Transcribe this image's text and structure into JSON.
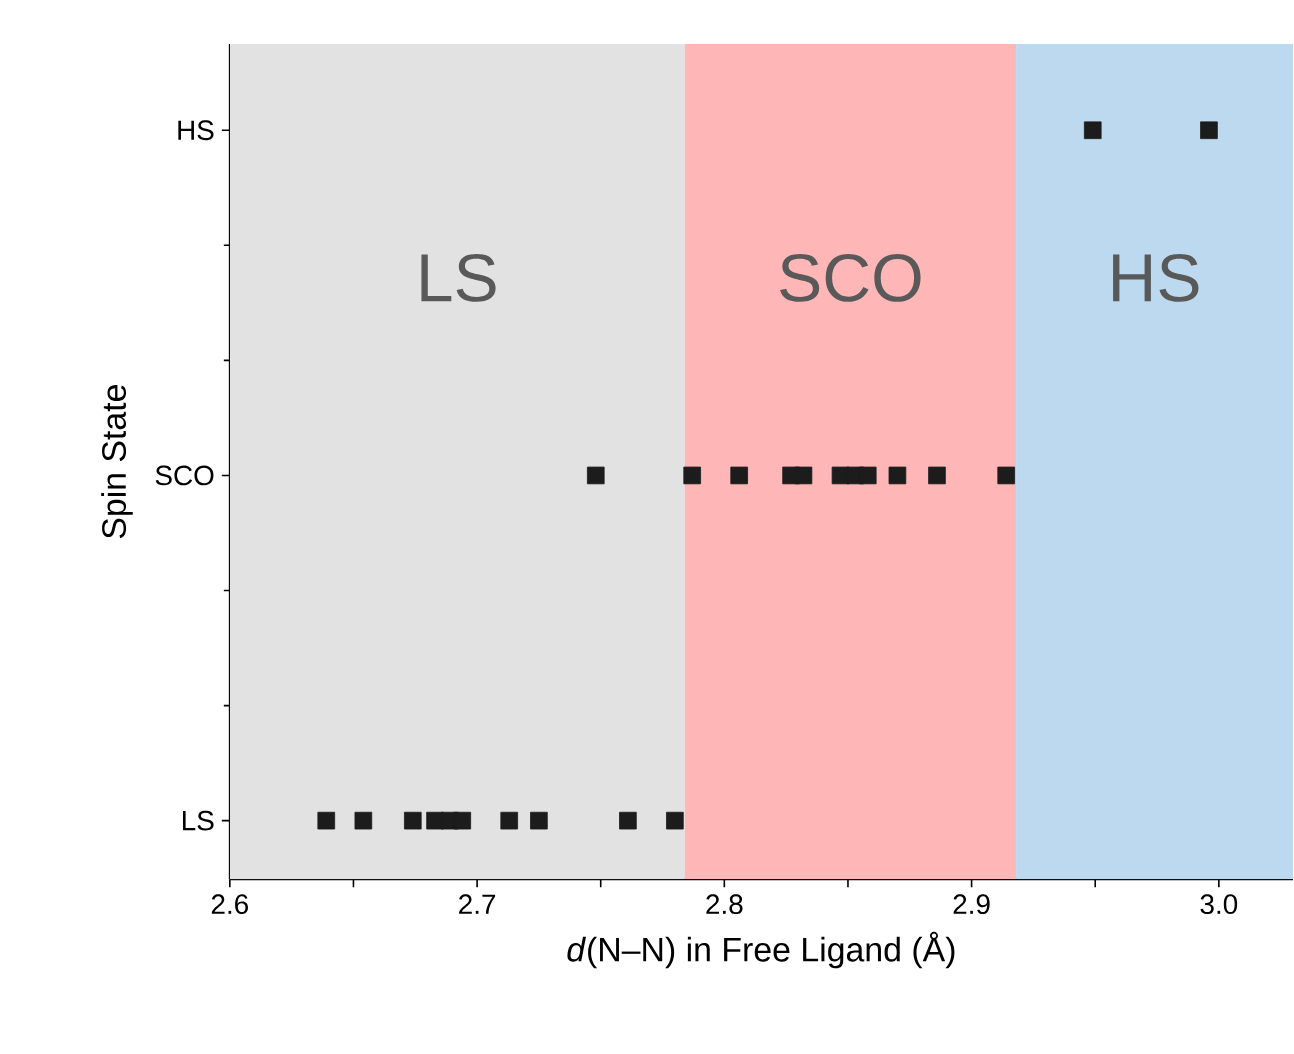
{
  "chart_data": {
    "type": "scatter",
    "orientation": "horizontal",
    "xlabel": "*d*(N–N) in Free Ligand (Å)",
    "ylabel": "Spin State",
    "categories": [
      "HS",
      "SCO",
      "LS"
    ],
    "xlim": [
      2.6,
      3.03
    ],
    "xticks": [
      {
        "value": 2.6,
        "label": "2.6"
      },
      {
        "value": 2.65,
        "label": null
      },
      {
        "value": 2.7,
        "label": "2.7"
      },
      {
        "value": 2.75,
        "label": null
      },
      {
        "value": 2.8,
        "label": "2.8"
      },
      {
        "value": 2.85,
        "label": null
      },
      {
        "value": 2.9,
        "label": "2.9"
      },
      {
        "value": 2.95,
        "label": null
      },
      {
        "value": 3.0,
        "label": "3.0"
      }
    ],
    "marker": "square",
    "series": [
      {
        "color": "#1c1c1c",
        "x": [
          "LS",
          "LS",
          "LS",
          "LS",
          "LS",
          "LS",
          "LS",
          "LS",
          "LS",
          "LS",
          "SCO",
          "SCO",
          "SCO",
          "SCO",
          "SCO",
          "SCO",
          "SCO",
          "SCO",
          "SCO",
          "SCO",
          "SCO",
          "HS",
          "HS"
        ],
        "values": [
          2.639,
          2.654,
          2.674,
          2.683,
          2.689,
          2.694,
          2.713,
          2.725,
          2.761,
          2.78,
          2.748,
          2.787,
          2.806,
          2.827,
          2.832,
          2.847,
          2.853,
          2.858,
          2.87,
          2.886,
          2.914,
          2.949,
          2.996
        ]
      }
    ],
    "bands": [
      {
        "axis": "x",
        "from": 2.6,
        "to": 2.784,
        "label": "LS",
        "color": "#e2e2e2"
      },
      {
        "axis": "x",
        "from": 2.784,
        "to": 2.918,
        "label": "SCO",
        "color": "#ffb6b6"
      },
      {
        "axis": "x",
        "from": 2.918,
        "to": 3.03,
        "label": "HS",
        "color": "#bcd9ef"
      }
    ]
  }
}
